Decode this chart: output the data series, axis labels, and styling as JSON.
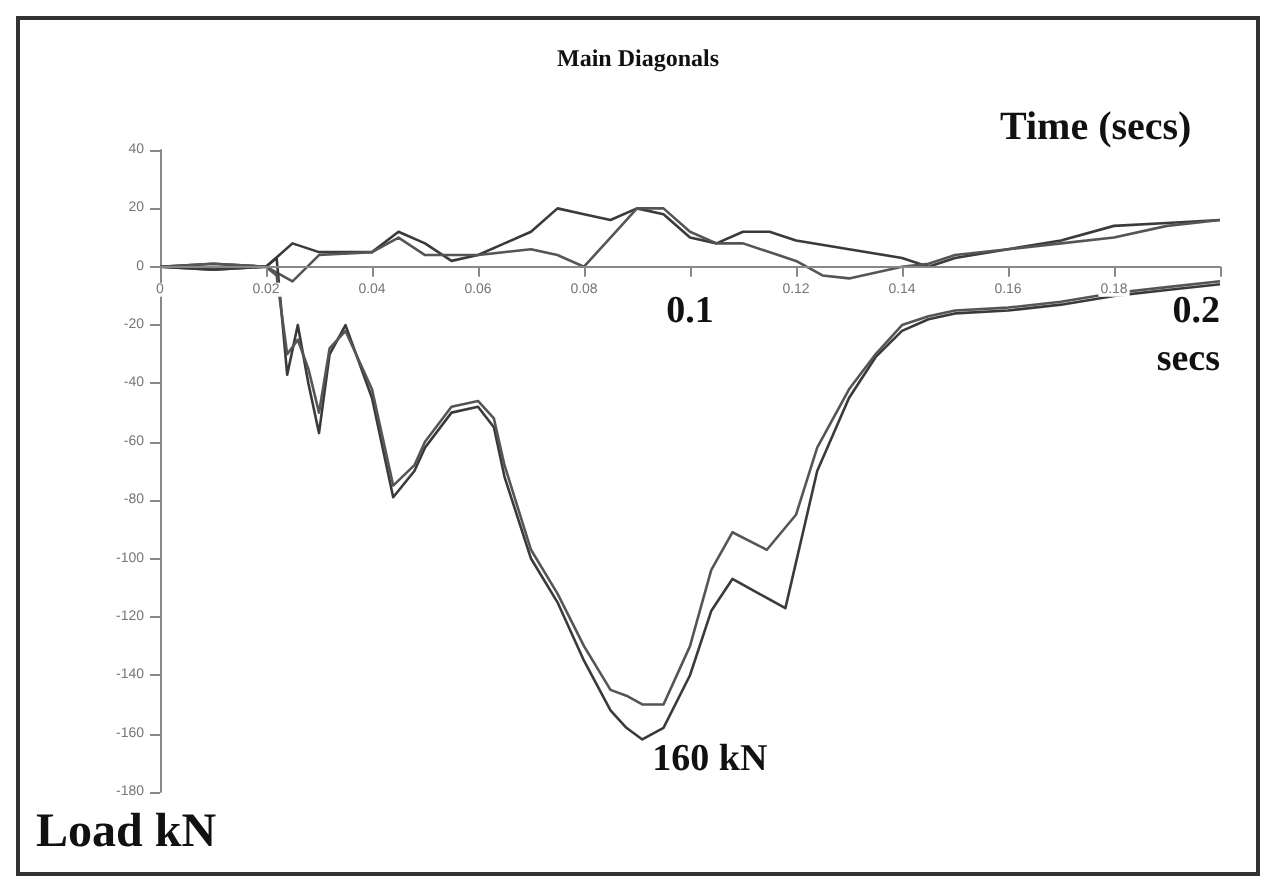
{
  "chart_data": {
    "type": "line",
    "title": "Main Diagonals",
    "xlabel": "Time (secs)",
    "ylabel": "Load kN",
    "xlim": [
      0,
      0.2
    ],
    "xticks": [
      0,
      0.02,
      0.04,
      0.06,
      0.08,
      {
        "value": 0.1,
        "label": null
      },
      0.12,
      0.14,
      0.16,
      0.18,
      {
        "value": 0.2,
        "label": null
      }
    ],
    "ylim": [
      -180,
      40
    ],
    "yticks": [
      40,
      20,
      0,
      -20,
      -40,
      -60,
      -80,
      -100,
      -120,
      -140,
      -160,
      -180
    ],
    "marker": "none",
    "line_style": "solid",
    "annotations": [
      "0.1",
      "0.2 secs",
      {
        "text": "160 kN",
        "x": 0.091,
        "y": -162
      }
    ],
    "series": [
      {
        "color": "#3a3a3a",
        "x": [
          0,
          0.01,
          0.02,
          0.025,
          0.03,
          0.04,
          0.045,
          0.05,
          0.055,
          0.06,
          0.065,
          0.07,
          0.075,
          0.08,
          0.085,
          0.09,
          0.095,
          0.1,
          0.105,
          0.11,
          0.115,
          0.12,
          0.13,
          0.14,
          0.145,
          0.15,
          0.16,
          0.17,
          0.18,
          0.19,
          0.2
        ],
        "values": [
          0,
          1,
          0,
          8,
          5,
          5,
          12,
          8,
          2,
          4,
          8,
          12,
          20,
          18,
          16,
          20,
          18,
          10,
          8,
          12,
          12,
          9,
          6,
          3,
          0,
          3,
          6,
          9,
          14,
          15,
          16
        ]
      },
      {
        "color": "#555555",
        "x": [
          0,
          0.01,
          0.02,
          0.025,
          0.03,
          0.04,
          0.045,
          0.05,
          0.06,
          0.07,
          0.075,
          0.08,
          0.085,
          0.09,
          0.095,
          0.1,
          0.105,
          0.11,
          0.12,
          0.125,
          0.13,
          0.14,
          0.145,
          0.15,
          0.16,
          0.17,
          0.18,
          0.19,
          0.2
        ],
        "values": [
          0,
          -1,
          0,
          -5,
          4,
          5,
          10,
          4,
          4,
          6,
          4,
          0,
          10,
          20,
          20,
          12,
          8,
          8,
          2,
          -3,
          -4,
          0,
          1,
          4,
          6,
          8,
          10,
          14,
          16
        ]
      },
      {
        "color": "#3a3a3a",
        "x": [
          0,
          0.01,
          0.02,
          0.022,
          0.024,
          0.026,
          0.028,
          0.03,
          0.032,
          0.035,
          0.04,
          0.044,
          0.048,
          0.05,
          0.055,
          0.06,
          0.063,
          0.065,
          0.07,
          0.075,
          0.08,
          0.085,
          0.088,
          0.091,
          0.095,
          0.1,
          0.104,
          0.108,
          0.113,
          0.118,
          0.124,
          0.13,
          0.135,
          0.14,
          0.145,
          0.15,
          0.16,
          0.17,
          0.18,
          0.19,
          0.2
        ],
        "values": [
          0,
          -1,
          0,
          3,
          -37,
          -20,
          -40,
          -57,
          -30,
          -20,
          -45,
          -79,
          -70,
          -62,
          -50,
          -48,
          -55,
          -72,
          -100,
          -115,
          -135,
          -152,
          -158,
          -162,
          -158,
          -140,
          -118,
          -107,
          -112,
          -117,
          -70,
          -45,
          -31,
          -22,
          -18,
          -16,
          -15,
          -13,
          -10,
          -8,
          -6
        ]
      },
      {
        "color": "#555555",
        "x": [
          0,
          0.01,
          0.02,
          0.022,
          0.024,
          0.026,
          0.028,
          0.03,
          0.032,
          0.035,
          0.04,
          0.044,
          0.048,
          0.05,
          0.055,
          0.06,
          0.063,
          0.065,
          0.07,
          0.075,
          0.08,
          0.085,
          0.088,
          0.091,
          0.095,
          0.1,
          0.104,
          0.108,
          0.1145,
          0.12,
          0.124,
          0.13,
          0.135,
          0.14,
          0.145,
          0.15,
          0.16,
          0.17,
          0.18,
          0.19,
          0.2
        ],
        "values": [
          0,
          1,
          0,
          -3,
          -30,
          -25,
          -35,
          -50,
          -28,
          -22,
          -42,
          -75,
          -68,
          -60,
          -48,
          -46,
          -52,
          -68,
          -97,
          -112,
          -130,
          -145,
          -147,
          -150,
          -150,
          -130,
          -104,
          -91,
          -97,
          -85,
          -62,
          -42,
          -30,
          -20,
          -17,
          -15,
          -14,
          -12,
          -9,
          -7,
          -5
        ]
      }
    ]
  }
}
